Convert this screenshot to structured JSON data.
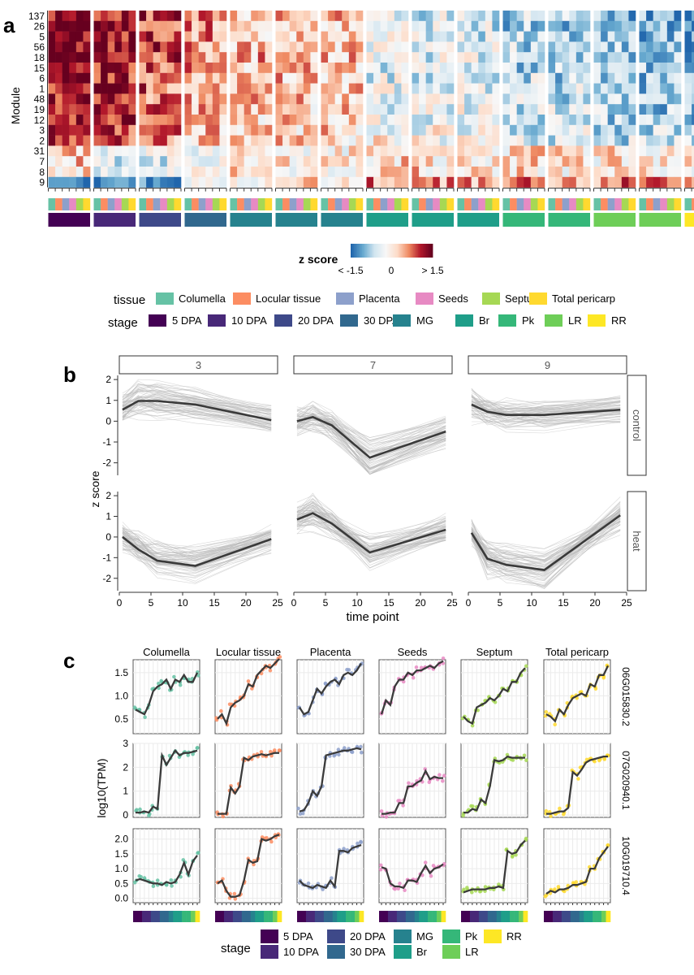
{
  "panels": {
    "a": "a",
    "b": "b",
    "c": "c"
  },
  "colors": {
    "tissue": {
      "Columella": "#66c2a5",
      "Locular tissue": "#fc8d62",
      "Placenta": "#8da0cb",
      "Seeds": "#e78ac3",
      "Septum": "#a6d854",
      "Total pericarp": "#ffd92f"
    },
    "stage": {
      "5 DPA": "#440154",
      "10 DPA": "#482878",
      "20 DPA": "#3e4989",
      "30 DPA": "#31688e",
      "MG": "#26828e",
      "Br": "#1f9e89",
      "Pk": "#35b779",
      "LR": "#6ece58",
      "RR": "#fde725"
    },
    "zscale": [
      "#2166ac",
      "#67a9cf",
      "#d1e5f0",
      "#f7f7f7",
      "#fddbc7",
      "#ef8a62",
      "#b2182b",
      "#67001f"
    ],
    "line": "#3a3a3a",
    "trace": "#b8b8b8"
  },
  "chart_data": [
    {
      "type": "heatmap",
      "ylabel": "Module",
      "rows": [
        "137",
        "26",
        "5",
        "56",
        "18",
        "15",
        "6",
        "1",
        "48",
        "19",
        "12",
        "3",
        "2",
        "31",
        "7",
        "8",
        "9"
      ],
      "groups": [
        {
          "stage": "5 DPA",
          "mean": [
            1.4,
            1.4,
            1.4,
            1.3,
            1.3,
            1.3,
            1.3,
            1.2,
            1.2,
            1.1,
            1.0,
            1.0,
            0.9,
            0.3,
            0.2,
            0.1,
            -1.6
          ]
        },
        {
          "stage": "10 DPA",
          "mean": [
            1.3,
            1.3,
            1.3,
            1.3,
            1.2,
            1.2,
            1.1,
            1.1,
            1.0,
            1.0,
            1.0,
            0.9,
            0.8,
            -0.3,
            -0.4,
            -0.4,
            -1.5
          ]
        },
        {
          "stage": "20 DPA",
          "mean": [
            1.0,
            1.0,
            0.9,
            0.9,
            0.9,
            0.8,
            0.8,
            0.8,
            0.7,
            0.7,
            0.6,
            0.6,
            0.5,
            -0.4,
            -0.5,
            -0.5,
            -1.3
          ]
        },
        {
          "stage": "30 DPA",
          "mean": [
            0.6,
            0.6,
            0.6,
            0.5,
            0.5,
            0.5,
            0.5,
            0.4,
            0.4,
            0.4,
            0.3,
            0.3,
            0.2,
            -0.1,
            -0.1,
            -0.2,
            -0.6
          ]
        },
        {
          "stage": "MG",
          "mean": [
            0.3,
            0.4,
            0.3,
            0.4,
            0.4,
            0.3,
            0.3,
            0.3,
            0.3,
            0.3,
            0.2,
            0.3,
            0.2,
            0.1,
            0.0,
            0.1,
            0.0
          ]
        },
        {
          "stage": "MG",
          "mean": [
            0.4,
            0.4,
            0.3,
            0.4,
            0.3,
            0.3,
            0.3,
            0.3,
            0.3,
            0.2,
            0.2,
            0.2,
            0.2,
            0.0,
            0.1,
            0.0,
            0.1
          ]
        },
        {
          "stage": "MG",
          "mean": [
            0.3,
            0.3,
            0.3,
            0.3,
            0.3,
            0.3,
            0.2,
            0.2,
            0.2,
            0.2,
            0.2,
            0.2,
            0.1,
            0.0,
            0.0,
            0.1,
            0.1
          ]
        },
        {
          "stage": "Br",
          "mean": [
            -0.4,
            -0.4,
            -0.4,
            -0.4,
            -0.3,
            -0.4,
            -0.4,
            -0.3,
            -0.3,
            -0.3,
            -0.2,
            -0.2,
            -0.1,
            0.2,
            0.2,
            0.3,
            0.6
          ]
        },
        {
          "stage": "Br",
          "mean": [
            -0.5,
            -0.5,
            -0.5,
            -0.4,
            -0.4,
            -0.4,
            -0.4,
            -0.3,
            -0.3,
            -0.3,
            -0.3,
            -0.2,
            -0.2,
            0.1,
            0.1,
            0.2,
            0.6
          ]
        },
        {
          "stage": "Br",
          "mean": [
            -0.5,
            -0.5,
            -0.5,
            -0.5,
            -0.4,
            -0.4,
            -0.4,
            -0.4,
            -0.4,
            -0.3,
            -0.3,
            -0.3,
            -0.2,
            0.0,
            0.0,
            0.1,
            0.6
          ]
        },
        {
          "stage": "Pk",
          "mean": [
            -0.7,
            -0.8,
            -0.7,
            -0.7,
            -0.7,
            -0.7,
            -0.6,
            -0.6,
            -0.6,
            -0.6,
            -0.5,
            -0.5,
            -0.4,
            0.1,
            0.1,
            0.1,
            0.7
          ]
        },
        {
          "stage": "Pk",
          "mean": [
            -0.8,
            -0.8,
            -0.8,
            -0.7,
            -0.7,
            -0.7,
            -0.7,
            -0.6,
            -0.7,
            -0.6,
            -0.6,
            -0.5,
            -0.5,
            0.0,
            0.1,
            0.0,
            0.7
          ]
        },
        {
          "stage": "LR",
          "mean": [
            -0.9,
            -0.9,
            -0.9,
            -0.8,
            -0.8,
            -0.8,
            -0.8,
            -0.8,
            -0.8,
            -0.7,
            -0.7,
            -0.6,
            -0.6,
            0.1,
            0.0,
            0.1,
            0.7
          ]
        },
        {
          "stage": "LR",
          "mean": [
            -1.0,
            -1.0,
            -0.9,
            -0.9,
            -0.9,
            -0.9,
            -0.9,
            -0.9,
            -0.9,
            -0.8,
            -0.8,
            -0.7,
            -0.7,
            0.1,
            0.1,
            0.1,
            0.8
          ]
        },
        {
          "stage": "RR",
          "mean": [
            -1.2,
            -1.1,
            -1.1,
            -1.1,
            -1.1,
            -1.0,
            -1.0,
            -1.0,
            -1.0,
            -0.9,
            -0.9,
            -0.8,
            -0.8,
            0.0,
            0.1,
            0.1,
            0.8
          ]
        }
      ],
      "columns_per_group": 6,
      "column_tissues": [
        "Columella",
        "Locular tissue",
        "Placenta",
        "Seeds",
        "Septum",
        "Total pericarp"
      ],
      "colorbar": {
        "title": "z score",
        "ticks": [
          "< -1.5",
          "0",
          "> 1.5"
        ],
        "range": [
          -1.5,
          1.5
        ]
      },
      "legend": {
        "tissue_title": "tissue",
        "tissue": [
          "Columella",
          "Locular tissue",
          "Placenta",
          "Seeds",
          "Septum",
          "Total pericarp"
        ],
        "stage_title": "stage",
        "stage": [
          "5 DPA",
          "10 DPA",
          "20 DPA",
          "30 DPA",
          "MG",
          "Br",
          "Pk",
          "LR",
          "RR"
        ]
      }
    },
    {
      "type": "line",
      "facet_cols": [
        "3",
        "7",
        "9"
      ],
      "facet_rows": [
        "control",
        "heat"
      ],
      "xlabel": "time point",
      "ylabel": "z score",
      "xlim": [
        0,
        25
      ],
      "ylim": [
        -2.6,
        2.2
      ],
      "xticks": [
        0,
        5,
        10,
        15,
        20,
        25
      ],
      "yticks": [
        -2,
        -1,
        0,
        1,
        2
      ],
      "x": [
        0.5,
        3,
        6,
        12,
        24
      ],
      "series": [
        {
          "col": "3",
          "row": "control",
          "values": [
            0.55,
            0.97,
            0.97,
            0.8,
            0.05
          ]
        },
        {
          "col": "7",
          "row": "control",
          "values": [
            0.0,
            0.2,
            -0.2,
            -1.75,
            -0.5
          ]
        },
        {
          "col": "9",
          "row": "control",
          "values": [
            0.8,
            0.45,
            0.3,
            0.3,
            0.55
          ]
        },
        {
          "col": "3",
          "row": "heat",
          "values": [
            0.0,
            -0.6,
            -1.15,
            -1.4,
            -0.1
          ]
        },
        {
          "col": "7",
          "row": "heat",
          "values": [
            0.85,
            1.15,
            0.65,
            -0.75,
            0.35
          ]
        },
        {
          "col": "9",
          "row": "heat",
          "values": [
            0.2,
            -1.05,
            -1.35,
            -1.6,
            1.05
          ]
        }
      ]
    },
    {
      "type": "line",
      "tissues": [
        "Columella",
        "Locular tissue",
        "Placenta",
        "Seeds",
        "Septum",
        "Total pericarp"
      ],
      "genes": [
        "06G015830.2",
        "07G020940.1",
        "10G019710.4"
      ],
      "ylabel": "log10(TPM)",
      "rows": [
        {
          "gene": "06G015830.2",
          "ylim": [
            0.18,
            1.78
          ],
          "yticks": [
            0.5,
            1.0,
            1.5
          ],
          "ytick_labels": [
            "0.5",
            "1.0",
            "1.5"
          ],
          "series": [
            [
              0.7,
              0.65,
              0.6,
              0.8,
              1.1,
              1.2,
              1.25,
              1.35,
              1.15,
              1.35,
              1.3,
              1.45,
              1.3,
              1.3,
              1.5
            ],
            [
              0.5,
              0.6,
              0.4,
              0.75,
              0.85,
              0.9,
              1.0,
              1.25,
              1.2,
              1.45,
              1.55,
              1.65,
              1.6,
              1.7,
              1.8
            ],
            [
              0.75,
              0.6,
              0.65,
              0.9,
              1.15,
              1.05,
              1.2,
              1.3,
              1.35,
              1.25,
              1.45,
              1.5,
              1.45,
              1.55,
              1.7
            ],
            [
              0.6,
              0.9,
              0.8,
              1.2,
              1.35,
              1.35,
              1.5,
              1.45,
              1.55,
              1.55,
              1.6,
              1.65,
              1.6,
              1.7,
              1.75
            ],
            [
              0.55,
              0.45,
              0.4,
              0.75,
              0.8,
              0.85,
              0.95,
              0.9,
              1.0,
              1.15,
              1.1,
              1.3,
              1.3,
              1.5,
              1.6
            ],
            [
              0.6,
              0.55,
              0.45,
              0.7,
              0.6,
              0.8,
              0.95,
              1.0,
              1.05,
              1.0,
              1.25,
              1.2,
              1.45,
              1.45,
              1.65
            ]
          ]
        },
        {
          "gene": "07G020940.1",
          "ylim": [
            -0.1,
            3.0
          ],
          "yticks": [
            0,
            1,
            2,
            3
          ],
          "ytick_labels": [
            "0",
            "1",
            "2",
            "3"
          ],
          "series": [
            [
              0.1,
              0.1,
              0.15,
              0.1,
              0.35,
              0.25,
              2.5,
              2.1,
              2.4,
              2.7,
              2.5,
              2.6,
              2.6,
              2.65,
              2.7
            ],
            [
              0.05,
              0.05,
              0.05,
              1.15,
              0.9,
              1.2,
              2.4,
              2.3,
              2.45,
              2.5,
              2.55,
              2.5,
              2.55,
              2.6,
              2.6
            ],
            [
              0.15,
              0.2,
              0.5,
              1.0,
              0.8,
              1.2,
              2.5,
              2.55,
              2.6,
              2.65,
              2.7,
              2.7,
              2.75,
              2.8,
              2.75
            ],
            [
              0.05,
              0.05,
              0.1,
              0.1,
              0.5,
              0.5,
              1.2,
              1.2,
              1.35,
              1.45,
              1.85,
              1.5,
              1.6,
              1.55,
              1.55
            ],
            [
              0.1,
              0.1,
              0.25,
              0.2,
              0.65,
              0.5,
              1.2,
              2.3,
              2.25,
              2.3,
              2.45,
              2.4,
              2.4,
              2.4,
              2.4
            ],
            [
              0.05,
              0.05,
              0.1,
              0.15,
              0.15,
              0.3,
              1.8,
              1.65,
              1.9,
              2.2,
              2.3,
              2.35,
              2.4,
              2.45,
              2.45
            ]
          ]
        },
        {
          "gene": "10G019710.4",
          "ylim": [
            -0.15,
            2.35
          ],
          "yticks": [
            0,
            0.5,
            1.0,
            1.5,
            2.0
          ],
          "ytick_labels": [
            "0.0",
            "0.5",
            "1.0",
            "1.5",
            "2.0"
          ],
          "series": [
            [
              0.6,
              0.65,
              0.6,
              0.55,
              0.5,
              0.5,
              0.45,
              0.55,
              0.5,
              0.55,
              0.8,
              1.2,
              0.8,
              1.25,
              1.45
            ],
            [
              0.5,
              0.6,
              0.25,
              0.05,
              0.05,
              0.1,
              0.6,
              1.3,
              1.2,
              1.25,
              2.0,
              1.95,
              2.0,
              2.1,
              2.15
            ],
            [
              0.6,
              0.45,
              0.4,
              0.35,
              0.45,
              0.4,
              0.35,
              0.6,
              0.4,
              1.6,
              1.6,
              1.55,
              1.7,
              1.75,
              1.8
            ],
            [
              1.05,
              1.0,
              0.5,
              0.4,
              0.4,
              0.35,
              0.6,
              0.6,
              0.55,
              0.85,
              1.1,
              0.85,
              1.0,
              1.05,
              1.15
            ],
            [
              0.2,
              0.25,
              0.3,
              0.3,
              0.3,
              0.3,
              0.35,
              0.35,
              0.4,
              0.35,
              1.6,
              1.5,
              1.55,
              1.8,
              1.95
            ],
            [
              0.15,
              0.25,
              0.2,
              0.3,
              0.3,
              0.35,
              0.45,
              0.45,
              0.5,
              0.55,
              1.0,
              1.0,
              1.35,
              1.55,
              1.75
            ]
          ]
        }
      ],
      "stage_strip": [
        "5 DPA",
        "5 DPA",
        "10 DPA",
        "10 DPA",
        "20 DPA",
        "20 DPA",
        "30 DPA",
        "30 DPA",
        "MG",
        "Br",
        "Br",
        "Pk",
        "Pk",
        "LR",
        "RR"
      ],
      "legend": {
        "title": "stage",
        "items": [
          "5 DPA",
          "10 DPA",
          "20 DPA",
          "30 DPA",
          "MG",
          "Br",
          "Pk",
          "LR",
          "RR"
        ]
      }
    }
  ]
}
